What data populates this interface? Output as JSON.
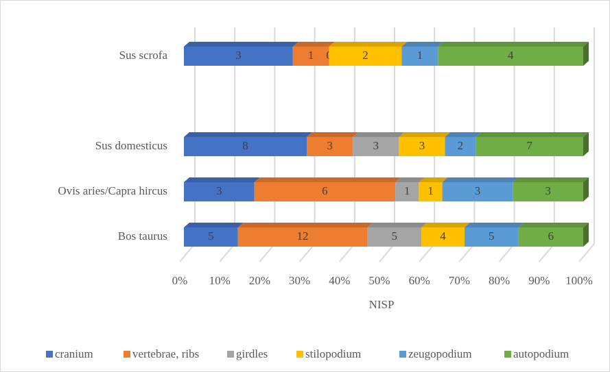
{
  "chart_data": {
    "type": "stacked_bar_100",
    "orientation": "horizontal",
    "x_axis_label": "NISP",
    "categories": [
      "Bos taurus",
      "Ovis aries/Capra hircus",
      "Sus domesticus",
      null,
      "Sus scrofa"
    ],
    "series": [
      {
        "name": "cranium",
        "color": "#4472c4",
        "values": [
          5,
          3,
          8,
          null,
          3
        ]
      },
      {
        "name": "vertebrae, ribs",
        "color": "#ed7d31",
        "values": [
          12,
          6,
          3,
          null,
          1
        ]
      },
      {
        "name": "girdles",
        "color": "#a5a5a5",
        "values": [
          5,
          1,
          3,
          null,
          0
        ]
      },
      {
        "name": "stilopodium",
        "color": "#ffc000",
        "values": [
          4,
          1,
          3,
          null,
          2
        ]
      },
      {
        "name": "zeugopodium",
        "color": "#5b9bd5",
        "values": [
          5,
          3,
          2,
          null,
          1
        ]
      },
      {
        "name": "autopodium",
        "color": "#70ad47",
        "values": [
          6,
          3,
          7,
          null,
          4
        ]
      }
    ],
    "xlim": [
      0,
      100
    ],
    "xticks": [
      {
        "value": 0,
        "label": "0%"
      },
      {
        "value": 10,
        "label": "10%"
      },
      {
        "value": 20,
        "label": "20%"
      },
      {
        "value": 30,
        "label": "30%"
      },
      {
        "value": 40,
        "label": "40%"
      },
      {
        "value": 50,
        "label": "50%"
      },
      {
        "value": 60,
        "label": "60%"
      },
      {
        "value": 70,
        "label": "70%"
      },
      {
        "value": 80,
        "label": "80%"
      },
      {
        "value": 90,
        "label": "90%"
      },
      {
        "value": 100,
        "label": "100%"
      }
    ],
    "grid": true,
    "legend": "bottom"
  }
}
